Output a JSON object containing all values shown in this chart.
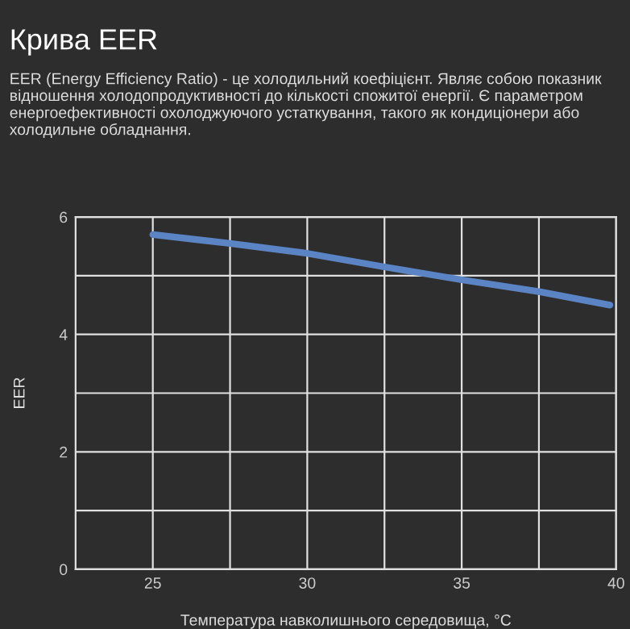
{
  "chart_data": {
    "type": "line",
    "title": "Крива EER",
    "subtitle": "EER (Energy Efficiency Ratio) - це холодильний коефіцієнт. Являє собою показник відношення холодопродуктивності до кількості спожитої енергії. Є параметром енергоефективності охолоджуючого устаткування, такого як кондиціонери або холодильне обладнання.",
    "xlabel": "Температура навколишнього середовища, °C",
    "ylabel": "EER",
    "x": [
      25,
      27.5,
      30,
      32.5,
      35,
      37.5,
      39.8
    ],
    "series": [
      {
        "color": "#5b84c4",
        "values": [
          5.7,
          5.55,
          5.38,
          5.15,
          4.93,
          4.73,
          4.5
        ]
      }
    ],
    "xlim": [
      22.5,
      40
    ],
    "ylim": [
      0,
      6
    ],
    "xticks": [
      25,
      {
        "value": 27.5,
        "label": null
      },
      30,
      {
        "value": 32.5,
        "label": null
      },
      35,
      {
        "value": 37.5,
        "label": null
      },
      40
    ],
    "yticks": [
      0,
      {
        "value": 1,
        "label": null
      },
      2,
      {
        "value": 3,
        "label": null
      },
      4,
      {
        "value": 5,
        "label": null
      },
      6
    ],
    "grid": true,
    "legend": false,
    "marker": "none",
    "line_style": "solid"
  }
}
